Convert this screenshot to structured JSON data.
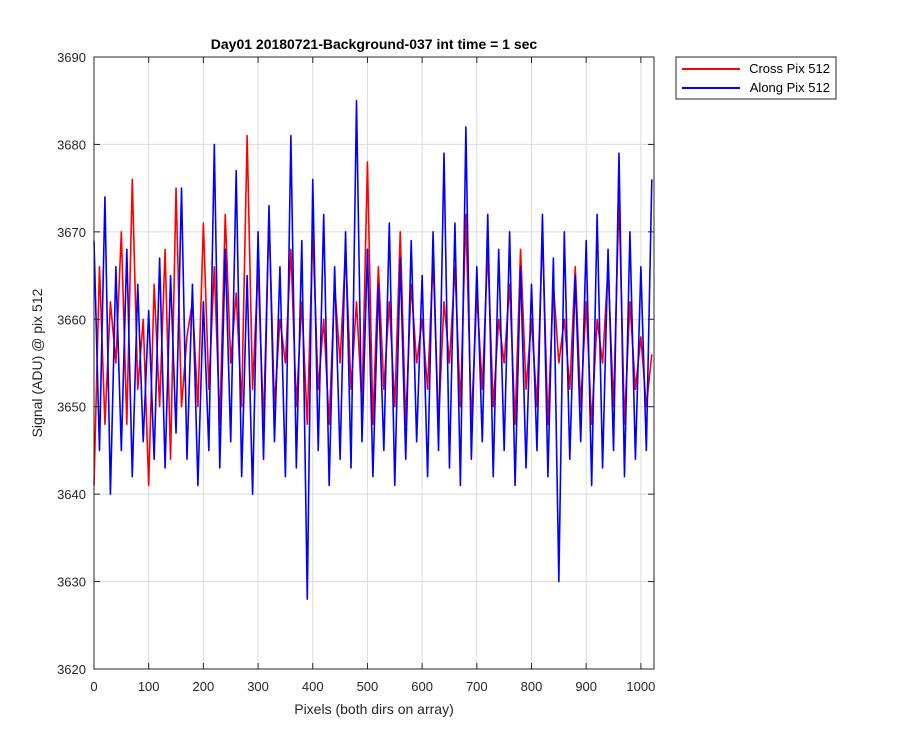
{
  "chart_data": {
    "type": "line",
    "title": "Day01 20180721-Background-037 int time = 1 sec",
    "xlabel": "Pixels (both dirs on array)",
    "ylabel": "Signal (ADU) @ pix 512",
    "xlim": [
      0,
      1024
    ],
    "ylim": [
      3620,
      3690
    ],
    "x_ticks": [
      0,
      100,
      200,
      300,
      400,
      500,
      600,
      700,
      800,
      900,
      1000
    ],
    "y_ticks": [
      3620,
      3630,
      3640,
      3650,
      3660,
      3670,
      3680,
      3690
    ],
    "grid": true,
    "legend_position": "outside-top-right",
    "series": [
      {
        "name": "Cross Pix 512",
        "color": "#ff0000",
        "x": [
          0,
          10,
          20,
          30,
          40,
          50,
          60,
          70,
          80,
          90,
          100,
          110,
          120,
          130,
          140,
          150,
          160,
          170,
          180,
          190,
          200,
          210,
          220,
          230,
          240,
          250,
          260,
          270,
          280,
          290,
          300,
          310,
          320,
          330,
          340,
          350,
          360,
          370,
          380,
          390,
          400,
          410,
          420,
          430,
          440,
          450,
          460,
          470,
          480,
          490,
          500,
          510,
          520,
          530,
          540,
          550,
          560,
          570,
          580,
          590,
          600,
          610,
          620,
          630,
          640,
          650,
          660,
          670,
          680,
          690,
          700,
          710,
          720,
          730,
          740,
          750,
          760,
          770,
          780,
          790,
          800,
          810,
          820,
          830,
          840,
          850,
          860,
          870,
          880,
          890,
          900,
          910,
          920,
          930,
          940,
          950,
          960,
          970,
          980,
          990,
          1000,
          1010,
          1020
        ],
        "values": [
          3641,
          3666,
          3648,
          3662,
          3655,
          3670,
          3648,
          3676,
          3652,
          3660,
          3641,
          3664,
          3650,
          3668,
          3644,
          3675,
          3650,
          3658,
          3662,
          3650,
          3671,
          3652,
          3666,
          3648,
          3672,
          3655,
          3663,
          3650,
          3681,
          3652,
          3666,
          3648,
          3672,
          3650,
          3660,
          3655,
          3668,
          3650,
          3662,
          3648,
          3670,
          3652,
          3660,
          3648,
          3664,
          3655,
          3668,
          3652,
          3662,
          3650,
          3678,
          3648,
          3666,
          3652,
          3662,
          3650,
          3670,
          3648,
          3664,
          3655,
          3660,
          3652,
          3667,
          3648,
          3662,
          3655,
          3666,
          3650,
          3672,
          3648,
          3663,
          3652,
          3668,
          3650,
          3660,
          3655,
          3664,
          3648,
          3668,
          3652,
          3660,
          3650,
          3670,
          3648,
          3664,
          3655,
          3660,
          3652,
          3666,
          3650,
          3662,
          3648,
          3660,
          3655,
          3666,
          3650,
          3674,
          3648,
          3662,
          3652,
          3658,
          3650,
          3656
        ]
      },
      {
        "name": "Along Pix 512",
        "color": "#0000ff",
        "x": [
          0,
          10,
          20,
          30,
          40,
          50,
          60,
          70,
          80,
          90,
          100,
          110,
          120,
          130,
          140,
          150,
          160,
          170,
          180,
          190,
          200,
          210,
          220,
          230,
          240,
          250,
          260,
          270,
          280,
          290,
          300,
          310,
          320,
          330,
          340,
          350,
          360,
          370,
          380,
          390,
          400,
          410,
          420,
          430,
          440,
          450,
          460,
          470,
          480,
          490,
          500,
          510,
          520,
          530,
          540,
          550,
          560,
          570,
          580,
          590,
          600,
          610,
          620,
          630,
          640,
          650,
          660,
          670,
          680,
          690,
          700,
          710,
          720,
          730,
          740,
          750,
          760,
          770,
          780,
          790,
          800,
          810,
          820,
          830,
          840,
          850,
          860,
          870,
          880,
          890,
          900,
          910,
          920,
          930,
          940,
          950,
          960,
          970,
          980,
          990,
          1000,
          1010,
          1020
        ],
        "values": [
          3669,
          3645,
          3674,
          3640,
          3666,
          3645,
          3668,
          3642,
          3664,
          3646,
          3661,
          3644,
          3667,
          3643,
          3665,
          3647,
          3675,
          3644,
          3664,
          3641,
          3662,
          3645,
          3680,
          3643,
          3668,
          3646,
          3677,
          3642,
          3665,
          3640,
          3670,
          3644,
          3673,
          3646,
          3666,
          3642,
          3681,
          3643,
          3669,
          3628,
          3676,
          3645,
          3672,
          3641,
          3666,
          3644,
          3670,
          3643,
          3685,
          3646,
          3668,
          3642,
          3664,
          3645,
          3671,
          3641,
          3667,
          3644,
          3669,
          3646,
          3665,
          3642,
          3670,
          3645,
          3679,
          3643,
          3671,
          3641,
          3682,
          3644,
          3666,
          3646,
          3672,
          3642,
          3668,
          3645,
          3670,
          3641,
          3666,
          3643,
          3664,
          3645,
          3672,
          3642,
          3667,
          3630,
          3670,
          3644,
          3665,
          3646,
          3669,
          3641,
          3672,
          3643,
          3668,
          3645,
          3679,
          3642,
          3670,
          3644,
          3666,
          3645,
          3676
        ]
      }
    ]
  }
}
